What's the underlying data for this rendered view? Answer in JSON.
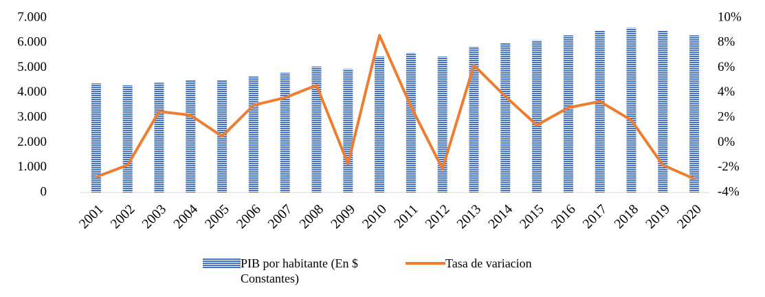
{
  "chart_data": {
    "type": "bar-line",
    "categories": [
      "2001",
      "2002",
      "2003",
      "2004",
      "2005",
      "2006",
      "2007",
      "2008",
      "2009",
      "2010",
      "2011",
      "2012",
      "2013",
      "2014",
      "2015",
      "2016",
      "2017",
      "2018",
      "2019",
      "2020"
    ],
    "series": [
      {
        "name": "PIB por habitante (En $ Constantes)",
        "type": "bar",
        "color": "#4472c4",
        "values": [
          4380,
          4300,
          4400,
          4500,
          4500,
          4650,
          4800,
          5050,
          4950,
          5450,
          5600,
          5450,
          5850,
          6000,
          6100,
          6300,
          6500,
          6600,
          6500,
          6300
        ]
      },
      {
        "name": "Tasa de variacion",
        "type": "line",
        "axis": "y2",
        "color": "#ed7d31",
        "values": [
          -2.75,
          -1.8,
          2.5,
          2.2,
          0.5,
          3.0,
          3.6,
          4.6,
          -1.7,
          8.6,
          2.9,
          -2.1,
          6.2,
          3.7,
          1.4,
          2.8,
          3.3,
          1.8,
          -1.8,
          -2.9
        ]
      }
    ],
    "ylim": [
      0,
      7000
    ],
    "yticks": [
      0,
      {
        "value": 1000,
        "label": "1.000"
      },
      {
        "value": 2000,
        "label": "2.000"
      },
      {
        "value": 3000,
        "label": "3.000"
      },
      {
        "value": 4000,
        "label": "4.000"
      },
      {
        "value": 5000,
        "label": "5.000"
      },
      {
        "value": 6000,
        "label": "6.000"
      },
      {
        "value": 7000,
        "label": "7.000"
      }
    ],
    "y2lim": [
      -4,
      10
    ],
    "y2ticks": [
      {
        "value": -4,
        "label": "-4%"
      },
      {
        "value": -2,
        "label": "-2%"
      },
      {
        "value": 0,
        "label": "0%"
      },
      {
        "value": 2,
        "label": "2%"
      },
      {
        "value": 4,
        "label": "4%"
      },
      {
        "value": 6,
        "label": "6%"
      },
      {
        "value": 8,
        "label": "8%"
      },
      {
        "value": 10,
        "label": "10%"
      }
    ],
    "legend": "bottom"
  }
}
